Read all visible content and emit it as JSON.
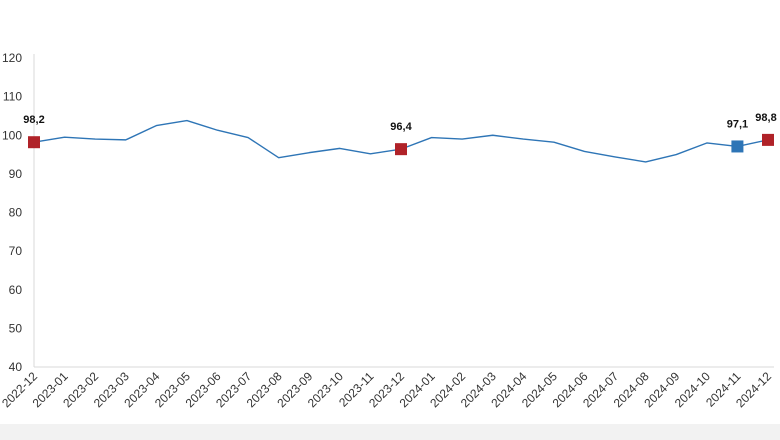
{
  "chart_data": {
    "type": "line",
    "title": "",
    "xlabel": "",
    "ylabel": "",
    "ylim": [
      40,
      120
    ],
    "yticks": [
      40,
      50,
      60,
      70,
      80,
      90,
      100,
      110,
      120
    ],
    "grid": false,
    "legend": "none",
    "line_color": "#2e75b6",
    "categories": [
      "2022-12",
      "2023-01",
      "2023-02",
      "2023-03",
      "2023-04",
      "2023-05",
      "2023-06",
      "2023-07",
      "2023-08",
      "2023-09",
      "2023-10",
      "2023-11",
      "2023-12",
      "2024-01",
      "2024-02",
      "2024-03",
      "2024-04",
      "2024-05",
      "2024-06",
      "2024-07",
      "2024-08",
      "2024-09",
      "2024-10",
      "2024-11",
      "2024-12"
    ],
    "series": [
      {
        "values": [
          98.2,
          99.5,
          99.0,
          98.8,
          102.5,
          103.8,
          101.3,
          99.4,
          94.2,
          95.5,
          96.6,
          95.2,
          96.4,
          99.4,
          99.0,
          100.0,
          99.0,
          98.2,
          95.8,
          94.4,
          93.1,
          95.0,
          98.0,
          97.1,
          98.8
        ]
      }
    ],
    "highlights": [
      {
        "index": 0,
        "value": 98.2,
        "label": "98,2",
        "color": "#b02228"
      },
      {
        "index": 12,
        "value": 96.4,
        "label": "96,4",
        "color": "#b02228"
      },
      {
        "index": 23,
        "value": 97.1,
        "label": "97,1",
        "color": "#2e75b6"
      },
      {
        "index": 24,
        "value": 98.8,
        "label": "98,8",
        "color": "#b02228"
      }
    ]
  }
}
